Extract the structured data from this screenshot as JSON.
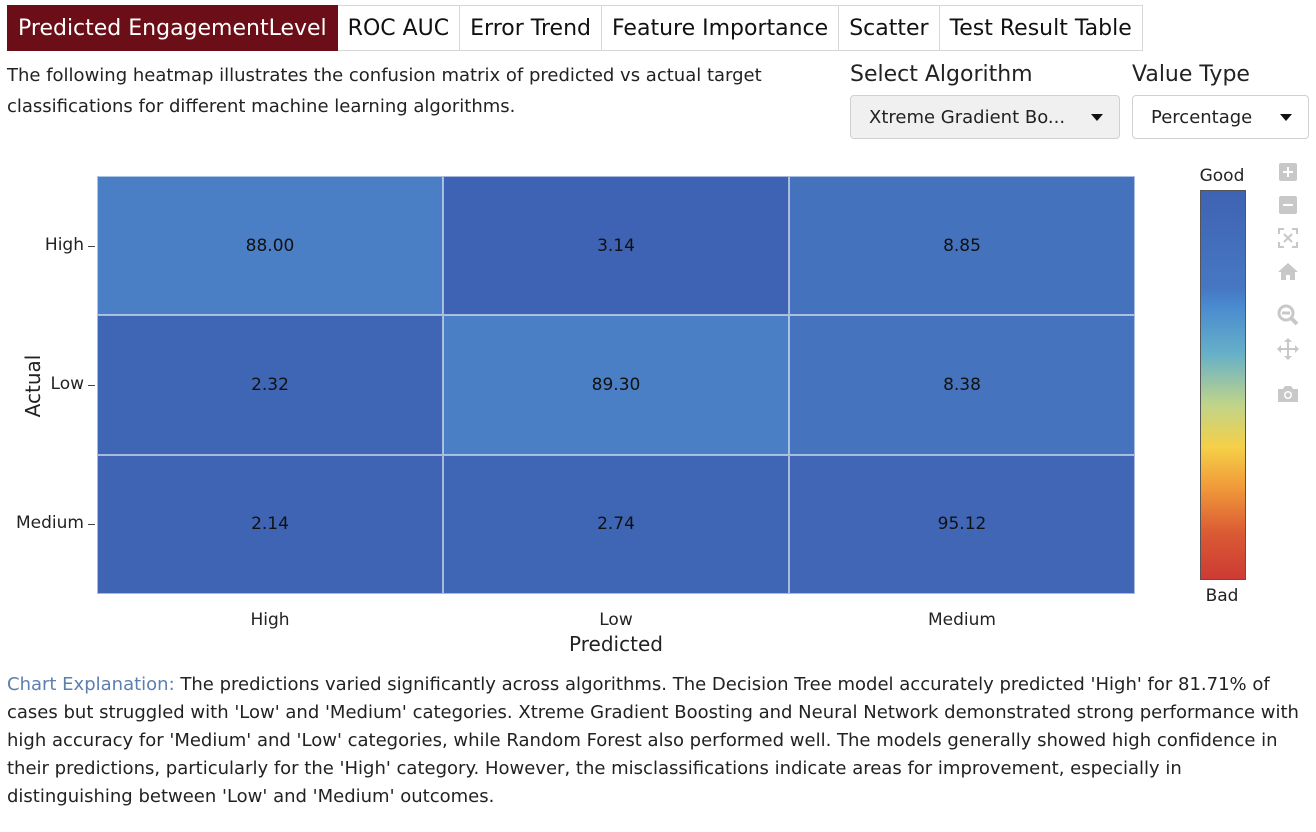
{
  "tabs": [
    {
      "label": "Predicted EngagementLevel",
      "active": true
    },
    {
      "label": "ROC AUC",
      "active": false
    },
    {
      "label": "Error Trend",
      "active": false
    },
    {
      "label": "Feature Importance",
      "active": false
    },
    {
      "label": "Scatter",
      "active": false
    },
    {
      "label": "Test Result Table",
      "active": false
    }
  ],
  "intro_text": "The following heatmap illustrates the confusion matrix of predicted vs actual target classifications for different machine learning algorithms.",
  "controls": {
    "algorithm_label": "Select Algorithm",
    "algorithm_value": "Xtreme Gradient Bo...",
    "value_type_label": "Value Type",
    "value_type_value": "Percentage"
  },
  "chart_data": {
    "type": "heatmap",
    "x_categories": [
      "High",
      "Low",
      "Medium"
    ],
    "y_categories": [
      "High",
      "Low",
      "Medium"
    ],
    "values": [
      [
        88.0,
        3.14,
        8.85
      ],
      [
        2.32,
        89.3,
        8.38
      ],
      [
        2.14,
        2.74,
        95.12
      ]
    ],
    "value_labels": [
      [
        "88.00",
        "3.14",
        "8.85"
      ],
      [
        "2.32",
        "89.30",
        "8.38"
      ],
      [
        "2.14",
        "2.74",
        "95.12"
      ]
    ],
    "xlabel": "Predicted",
    "ylabel": "Actual",
    "colorbar": {
      "top_label": "Good",
      "bottom_label": "Bad"
    },
    "cell_colors": [
      [
        "#4a7ec5",
        "#3f63b4",
        "#4572bc"
      ],
      [
        "#3f65b5",
        "#4a7ec5",
        "#4573bd"
      ],
      [
        "#3f64b4",
        "#3f65b5",
        "#4066b5"
      ]
    ]
  },
  "modebar_icons": [
    "zoom-in-icon",
    "zoom-out-icon",
    "autoscale-icon",
    "reset-axes-icon",
    "zoom-icon",
    "pan-icon",
    "camera-icon"
  ],
  "explanation": {
    "lead": "Chart Explanation:",
    "text": " The predictions varied significantly across algorithms. The Decision Tree model accurately predicted 'High' for 81.71% of cases but struggled with 'Low' and 'Medium' categories. Xtreme Gradient Boosting and Neural Network demonstrated strong performance with high accuracy for 'Medium' and 'Low' categories, while Random Forest also performed well. The models generally showed high confidence in their predictions, particularly for the 'High' category. However, the misclassifications indicate areas for improvement, especially in distinguishing between 'Low' and 'Medium' outcomes."
  }
}
